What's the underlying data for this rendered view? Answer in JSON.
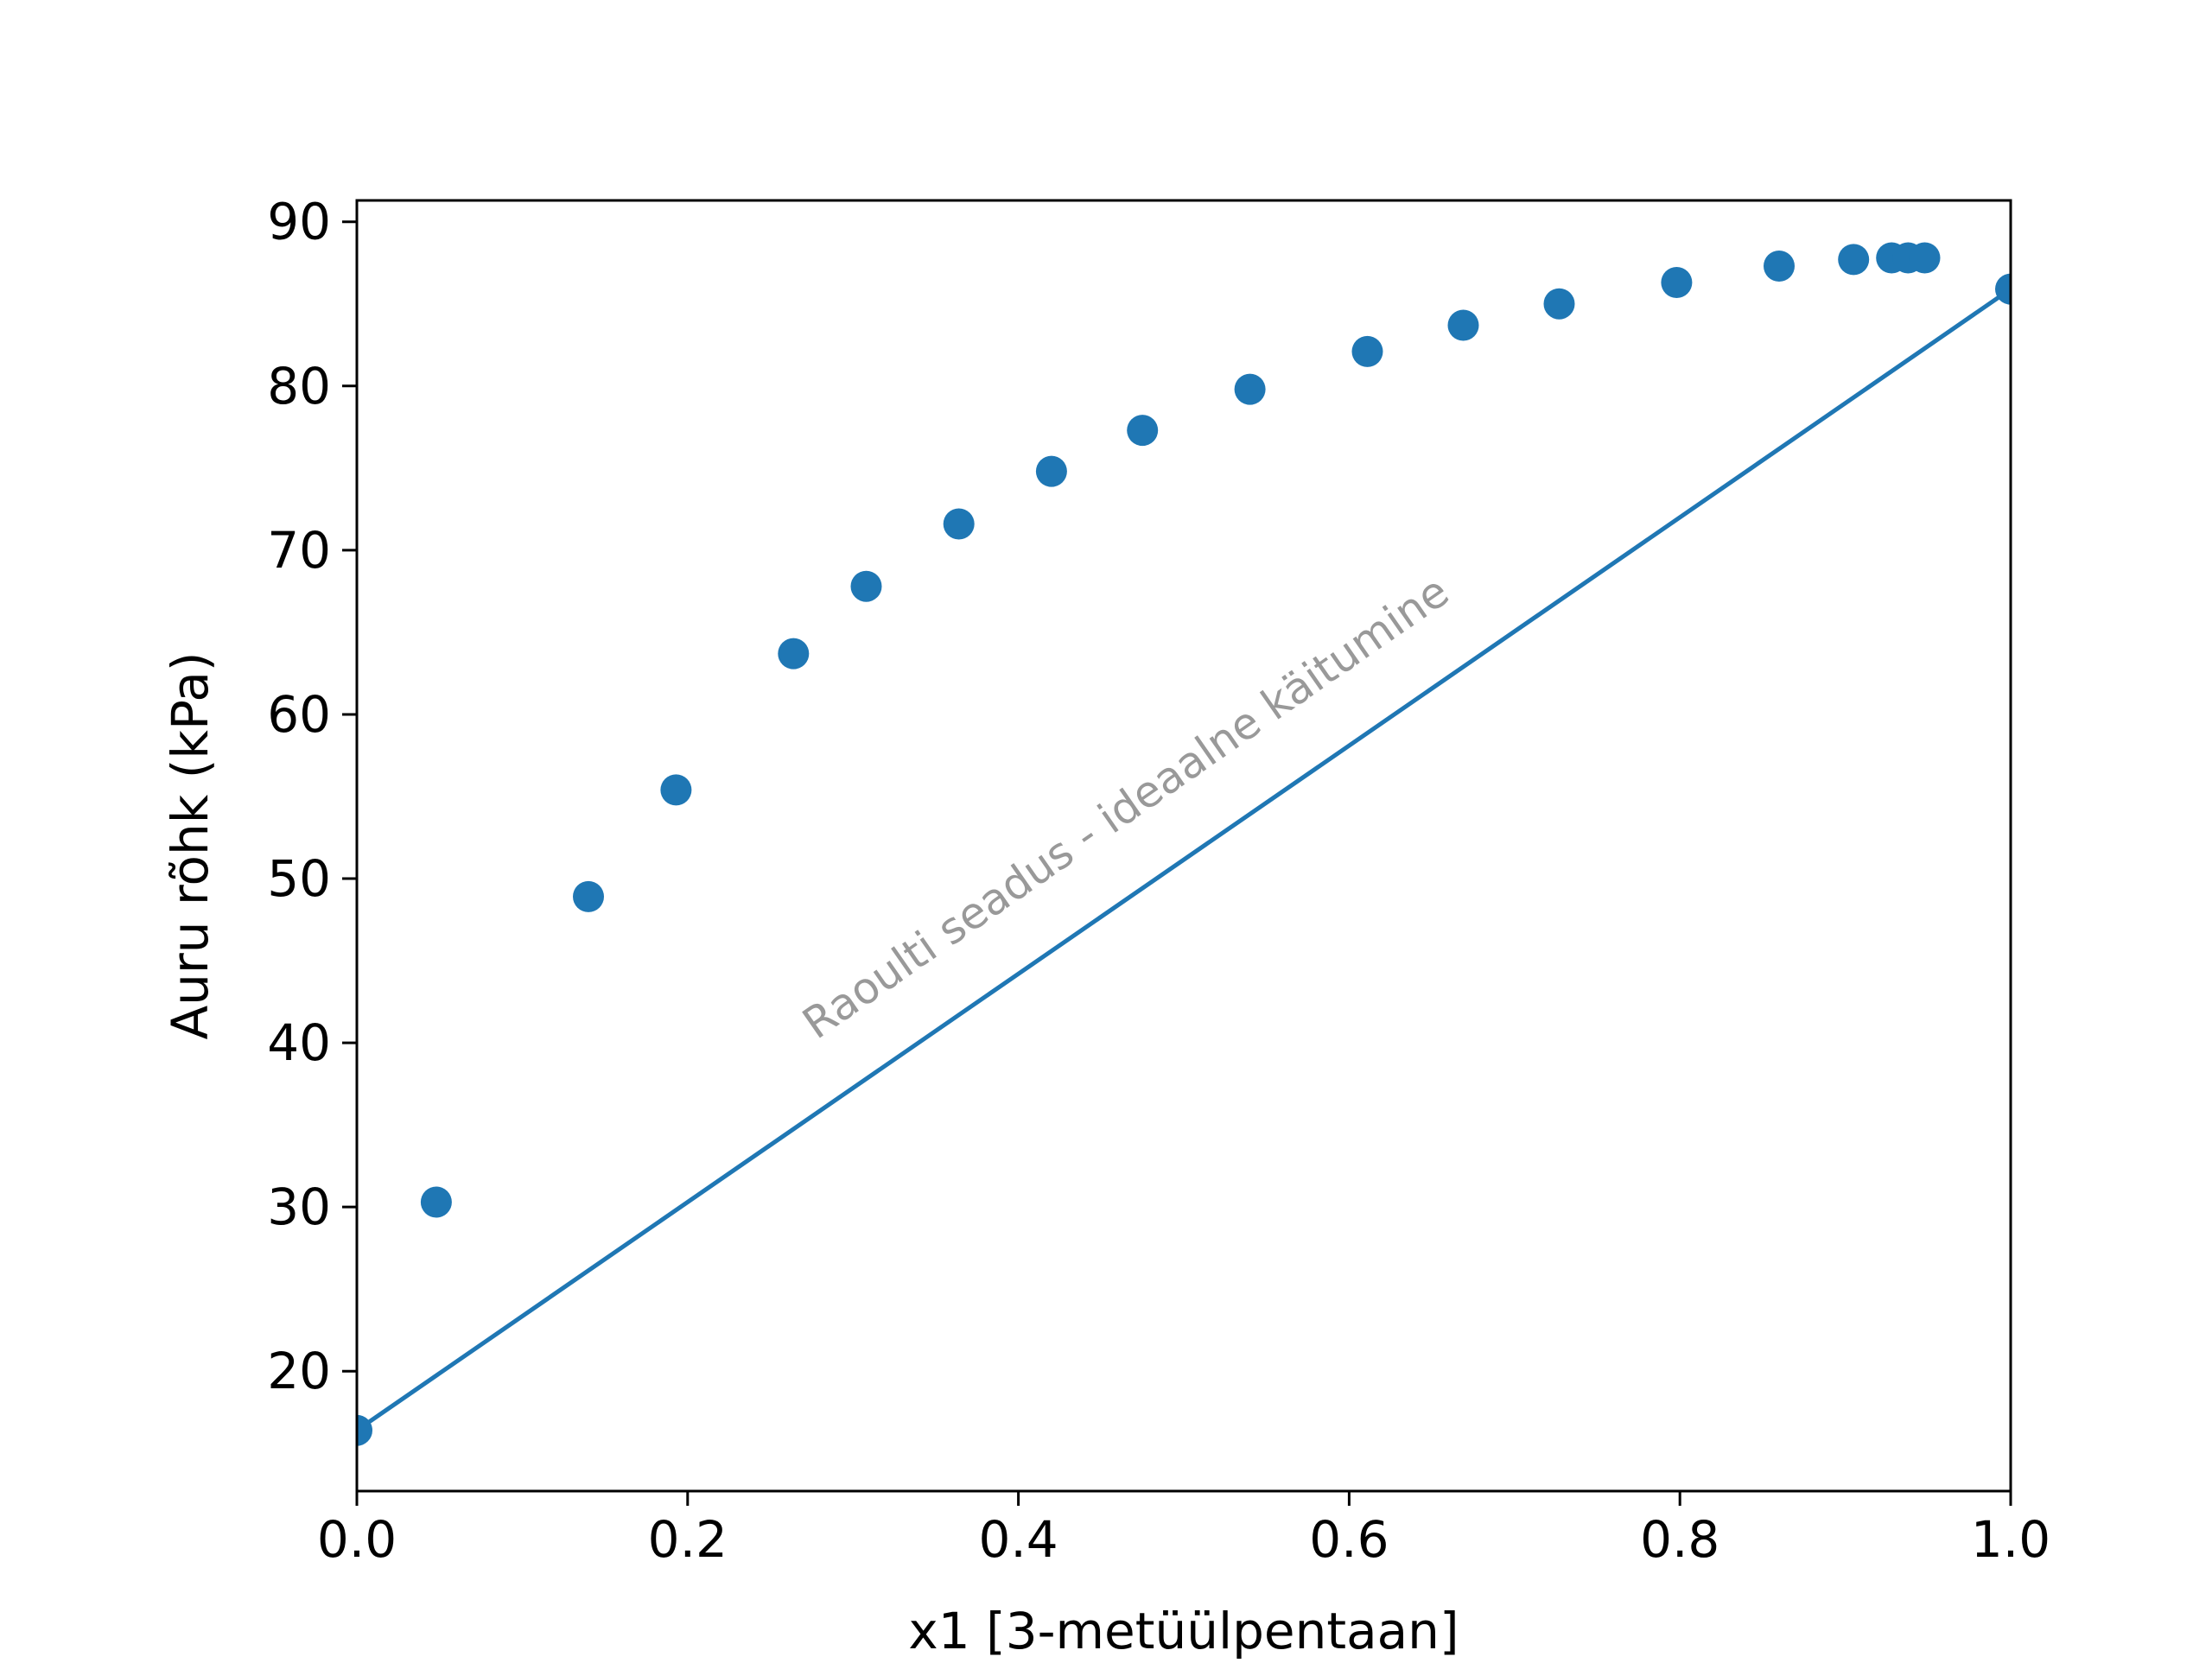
{
  "chart_data": {
    "type": "scatter",
    "title": "",
    "xlabel": "x1 [3-metüülpentaan]",
    "ylabel": "Auru rõhk (kPa)",
    "xlim": [
      0.0,
      1.0
    ],
    "ylim": [
      12.7,
      91.3
    ],
    "x_ticks": [
      0.0,
      0.2,
      0.4,
      0.6,
      0.8,
      1.0
    ],
    "x_tick_labels": [
      "0.0",
      "0.2",
      "0.4",
      "0.6",
      "0.8",
      "1.0"
    ],
    "y_ticks": [
      20,
      30,
      40,
      50,
      60,
      70,
      80,
      90
    ],
    "y_tick_labels": [
      "20",
      "30",
      "40",
      "50",
      "60",
      "70",
      "80",
      "90"
    ],
    "grid": false,
    "colors": {
      "series": "#1f77b4",
      "annotation": "#999999",
      "axes": "#000000"
    },
    "series": [
      {
        "kind": "scatter",
        "points": [
          {
            "x": 0.0,
            "y": 16.4
          },
          {
            "x": 0.048,
            "y": 30.3
          },
          {
            "x": 0.14,
            "y": 48.9
          },
          {
            "x": 0.193,
            "y": 55.4
          },
          {
            "x": 0.264,
            "y": 63.7
          },
          {
            "x": 0.308,
            "y": 67.8
          },
          {
            "x": 0.364,
            "y": 71.6
          },
          {
            "x": 0.42,
            "y": 74.8
          },
          {
            "x": 0.475,
            "y": 77.3
          },
          {
            "x": 0.54,
            "y": 79.8
          },
          {
            "x": 0.611,
            "y": 82.1
          },
          {
            "x": 0.669,
            "y": 83.7
          },
          {
            "x": 0.727,
            "y": 85.0
          },
          {
            "x": 0.798,
            "y": 86.3
          },
          {
            "x": 0.86,
            "y": 87.3
          },
          {
            "x": 0.905,
            "y": 87.7
          },
          {
            "x": 0.928,
            "y": 87.8
          },
          {
            "x": 0.938,
            "y": 87.8
          },
          {
            "x": 0.948,
            "y": 87.8
          },
          {
            "x": 1.0,
            "y": 85.9
          }
        ]
      },
      {
        "kind": "line",
        "points": [
          {
            "x": 0.0,
            "y": 16.4
          },
          {
            "x": 1.0,
            "y": 85.9
          }
        ]
      }
    ],
    "annotations": [
      {
        "text": "Raoulti seadus - ideaalne käitumine",
        "x": 0.47,
        "y": 53.6
      }
    ]
  }
}
